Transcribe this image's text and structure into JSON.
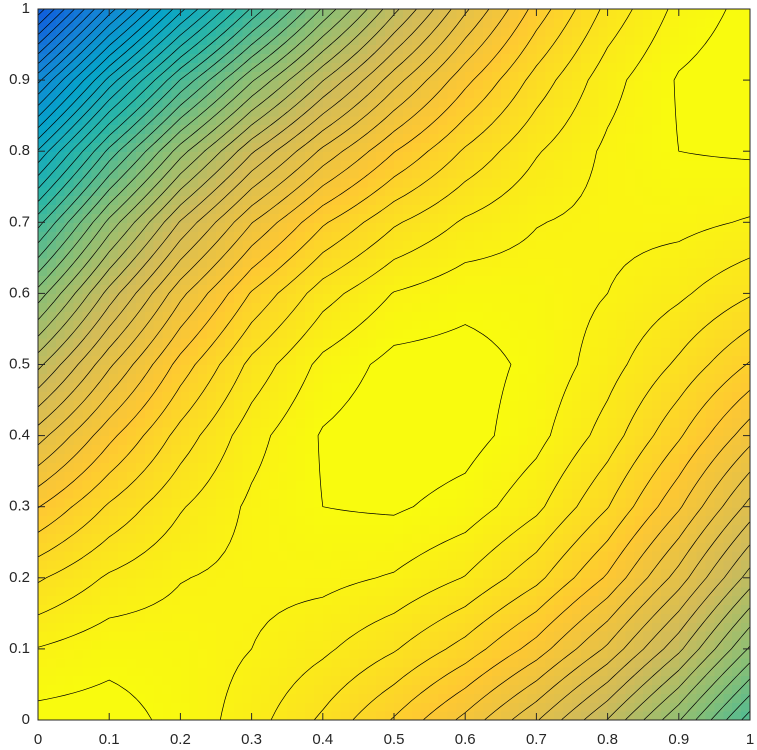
{
  "chart_data": {
    "type": "contour",
    "x": [
      0,
      0.1,
      0.2,
      0.3,
      0.4,
      0.5,
      0.6,
      0.7,
      0.8,
      0.9,
      1
    ],
    "y": [
      0,
      0.1,
      0.2,
      0.3,
      0.4,
      0.5,
      0.6,
      0.7,
      0.8,
      0.9,
      1
    ],
    "z": [
      [
        100.7,
        100.9,
        99.4,
        96.9,
        93.6,
        89.8,
        85.4,
        80.2,
        73.9,
        66.2,
        56.9
      ],
      [
        98.1,
        99.3,
        99.1,
        98.0,
        96.4,
        94.2,
        91.2,
        87.1,
        81.6,
        74.5,
        65.7
      ],
      [
        93.7,
        96.3,
        97.9,
        98.6,
        98.6,
        97.8,
        95.9,
        92.6,
        87.7,
        81.1,
        73.1
      ],
      [
        87.9,
        92.3,
        95.8,
        98.4,
        100.0,
        100.3,
        99.2,
        96.5,
        92.1,
        86.3,
        79.3
      ],
      [
        81.1,
        87.4,
        92.8,
        97.2,
        100.2,
        101.4,
        100.9,
        98.7,
        95.1,
        90.3,
        84.8
      ],
      [
        73.4,
        81.6,
        88.8,
        94.6,
        98.6,
        100.7,
        100.9,
        99.5,
        96.9,
        93.6,
        89.8
      ],
      [
        64.8,
        74.8,
        83.4,
        90.2,
        95.1,
        98.1,
        99.3,
        99.1,
        98.0,
        96.4,
        94.2
      ],
      [
        55.2,
        66.6,
        76.2,
        83.9,
        89.7,
        93.7,
        96.3,
        97.9,
        98.6,
        98.6,
        97.8
      ],
      [
        44.2,
        56.6,
        67.1,
        75.7,
        82.5,
        87.9,
        92.3,
        95.8,
        98.4,
        100.0,
        100.3
      ],
      [
        31.4,
        44.7,
        56.1,
        65.7,
        73.9,
        81.1,
        87.4,
        92.8,
        97.2,
        100.2,
        101.4
      ],
      [
        16.7,
        30.9,
        43.3,
        54.3,
        64.3,
        73.4,
        81.6,
        88.8,
        94.6,
        98.6,
        100.7
      ]
    ],
    "levels": [
      16,
      18,
      20,
      22,
      24,
      26,
      28,
      30,
      32,
      34,
      36,
      38,
      40,
      42,
      44,
      46,
      48,
      50,
      52,
      54,
      56,
      58,
      60,
      62,
      64,
      66,
      68,
      70,
      72,
      74,
      76,
      78,
      80,
      82,
      84,
      86,
      88,
      90,
      92,
      94,
      96,
      98,
      100
    ],
    "clim": [
      5,
      100
    ],
    "colormap": [
      "#352a87",
      "#0f5cdd",
      "#1481d6",
      "#06a4ca",
      "#2eb7a4",
      "#87bf77",
      "#d1bb59",
      "#fec832",
      "#f9fb0e"
    ],
    "line_color": "#000000",
    "xlim": [
      0,
      1
    ],
    "ylim": [
      0,
      1
    ],
    "xticks": [
      0,
      0.1,
      0.2,
      0.3,
      0.4,
      0.5,
      0.6,
      0.7,
      0.8,
      0.9,
      1
    ],
    "yticks": [
      0,
      0.1,
      0.2,
      0.3,
      0.4,
      0.5,
      0.6,
      0.7,
      0.8,
      0.9,
      1
    ]
  }
}
